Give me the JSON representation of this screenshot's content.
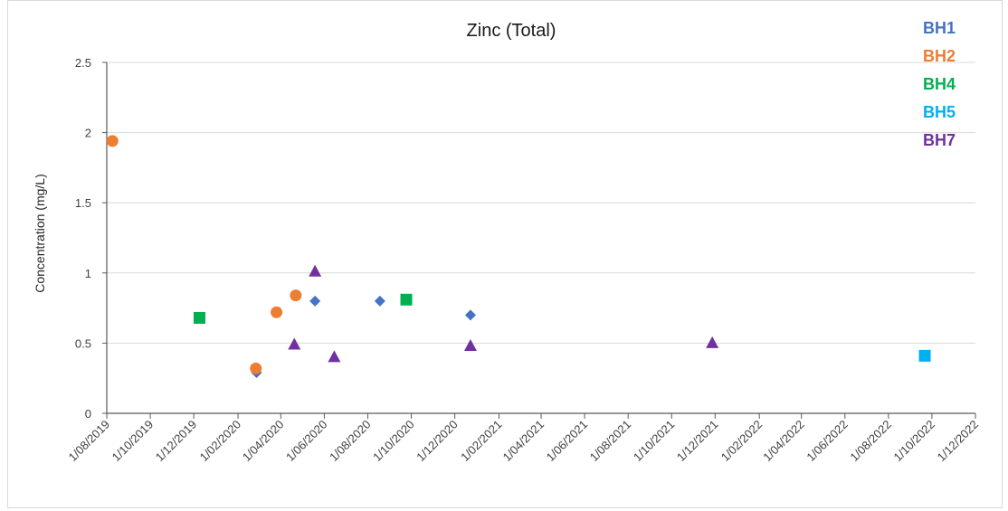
{
  "chart_data": {
    "type": "scatter",
    "title": "Zinc (Total)",
    "xlabel": "",
    "ylabel": "Concentration (mg/L)",
    "ylim": [
      0,
      2.5
    ],
    "xlim": [
      "2019-08-01",
      "2022-12-01"
    ],
    "y_ticks": [
      "0",
      "0.5",
      "1",
      "1.5",
      "2",
      "2.5"
    ],
    "x_tick_labels": [
      "1/08/2019",
      "1/10/2019",
      "1/12/2019",
      "1/02/2020",
      "1/04/2020",
      "1/06/2020",
      "1/08/2020",
      "1/10/2020",
      "1/12/2020",
      "1/02/2021",
      "1/04/2021",
      "1/06/2021",
      "1/08/2021",
      "1/10/2021",
      "1/12/2021",
      "1/02/2022",
      "1/04/2022",
      "1/06/2022",
      "1/08/2022",
      "1/10/2022",
      "1/12/2022"
    ],
    "x_tick_dates": [
      "2019-08-01",
      "2019-10-01",
      "2019-12-01",
      "2020-02-01",
      "2020-04-01",
      "2020-06-01",
      "2020-08-01",
      "2020-10-01",
      "2020-12-01",
      "2021-02-01",
      "2021-04-01",
      "2021-06-01",
      "2021-08-01",
      "2021-10-01",
      "2021-12-01",
      "2022-02-01",
      "2022-04-01",
      "2022-06-01",
      "2022-08-01",
      "2022-10-01",
      "2022-12-01"
    ],
    "grid": "horizontal",
    "legend_position": "top-right",
    "series": [
      {
        "name": "BH1",
        "color": "#4472c4",
        "marker": "diamond",
        "points": [
          {
            "x": "2020-02-27",
            "y": 0.29
          },
          {
            "x": "2020-05-19",
            "y": 0.8
          },
          {
            "x": "2020-08-18",
            "y": 0.8
          },
          {
            "x": "2020-12-23",
            "y": 0.7
          }
        ]
      },
      {
        "name": "BH2",
        "color": "#ed7d31",
        "marker": "circle",
        "points": [
          {
            "x": "2019-08-09",
            "y": 1.94
          },
          {
            "x": "2020-02-26",
            "y": 0.32
          },
          {
            "x": "2020-03-26",
            "y": 0.72
          },
          {
            "x": "2020-04-22",
            "y": 0.84
          }
        ]
      },
      {
        "name": "BH4",
        "color": "#00b050",
        "marker": "square",
        "points": [
          {
            "x": "2019-12-09",
            "y": 0.68
          },
          {
            "x": "2020-09-24",
            "y": 0.81
          }
        ]
      },
      {
        "name": "BH5",
        "color": "#00b0f0",
        "marker": "square",
        "points": [
          {
            "x": "2022-09-21",
            "y": 0.41
          }
        ]
      },
      {
        "name": "BH7",
        "color": "#7030a0",
        "marker": "triangle",
        "points": [
          {
            "x": "2020-04-20",
            "y": 0.49
          },
          {
            "x": "2020-05-19",
            "y": 1.01
          },
          {
            "x": "2020-06-15",
            "y": 0.4
          },
          {
            "x": "2020-12-23",
            "y": 0.48
          },
          {
            "x": "2021-11-27",
            "y": 0.5
          }
        ]
      }
    ]
  }
}
